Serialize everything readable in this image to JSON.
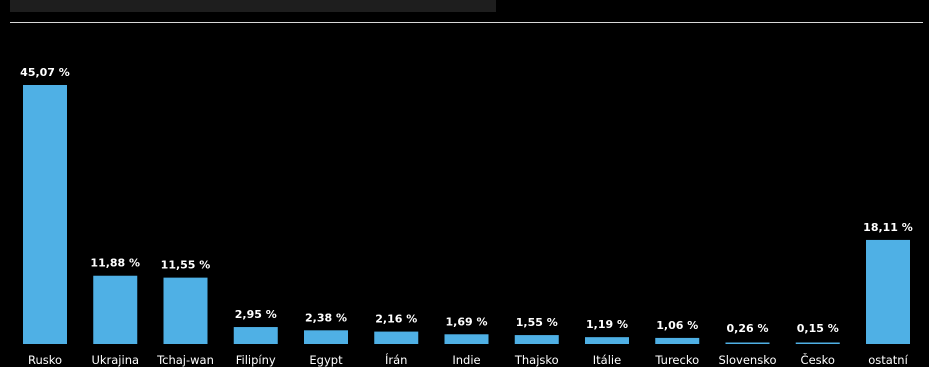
{
  "chart_data": {
    "type": "bar",
    "categories": [
      "Rusko",
      "Ukrajina",
      "Tchaj-wan",
      "Filipíny",
      "Egypt",
      "Írán",
      "Indie",
      "Thajsko",
      "Itálie",
      "Turecko",
      "Slovensko",
      "Česko",
      "ostatní"
    ],
    "values": [
      45.07,
      11.88,
      11.55,
      2.95,
      2.38,
      2.16,
      1.69,
      1.55,
      1.19,
      1.06,
      0.26,
      0.15,
      18.11
    ],
    "value_labels": [
      "45,07 %",
      "11,88 %",
      "11,55 %",
      "2,95 %",
      "2,38 %",
      "2,16 %",
      "1,69 %",
      "1,55 %",
      "1,19 %",
      "1,06 %",
      "0,26 %",
      "0,15 %",
      "18,11 %"
    ],
    "title": "",
    "xlabel": "",
    "ylabel": "",
    "ylim": [
      0,
      45.07
    ],
    "grid": false,
    "legend": "none",
    "bar_color": "#4fb0e5",
    "background_color": "#000000",
    "text_color": "#ffffff"
  }
}
